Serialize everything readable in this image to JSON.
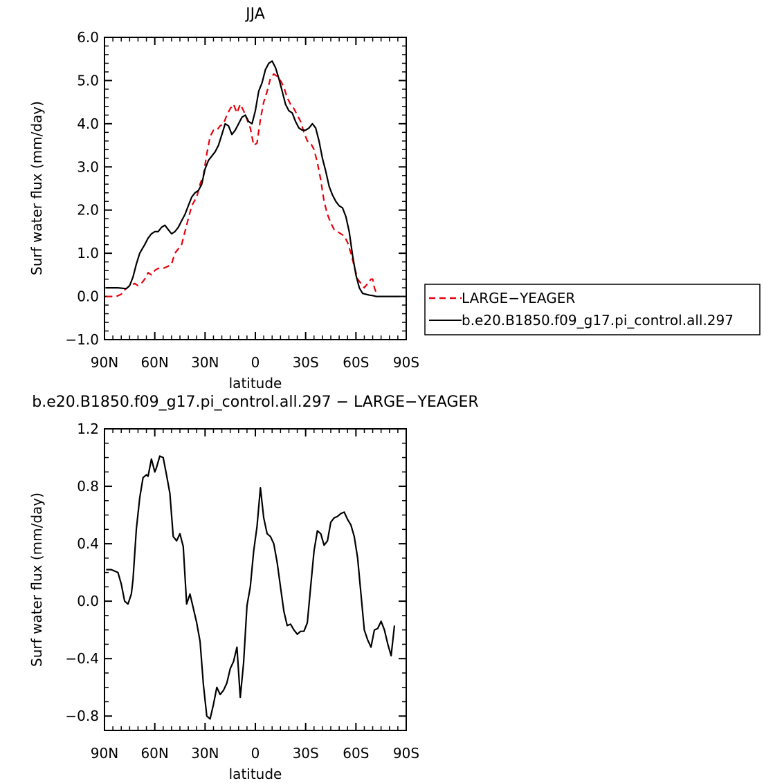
{
  "chart_data": [
    {
      "type": "line",
      "title": "JJA",
      "xlabel": "latitude",
      "ylabel": "Surf water flux (mm/day)",
      "xlim": [
        90,
        -90
      ],
      "ylim": [
        -1.0,
        6.0
      ],
      "xticks": [
        90,
        60,
        30,
        0,
        -30,
        -60,
        -90
      ],
      "xtick_labels": [
        "90N",
        "60N",
        "30N",
        "0",
        "30S",
        "60S",
        "90S"
      ],
      "yticks": [
        -1.0,
        0.0,
        1.0,
        2.0,
        3.0,
        4.0,
        5.0,
        6.0
      ],
      "ytick_labels": [
        "−1.0",
        "0.0",
        "1.0",
        "2.0",
        "3.0",
        "4.0",
        "5.0",
        "6.0"
      ],
      "legend_position": "right",
      "series": [
        {
          "name": "LARGE−YEAGER",
          "color": "#e8000b",
          "dash": "dashed",
          "points": [
            [
              89,
              0.0
            ],
            [
              83,
              0.0
            ],
            [
              80,
              0.05
            ],
            [
              78,
              0.15
            ],
            [
              75,
              0.25
            ],
            [
              72,
              0.3
            ],
            [
              70,
              0.25
            ],
            [
              68,
              0.3
            ],
            [
              66,
              0.4
            ],
            [
              64,
              0.55
            ],
            [
              62,
              0.5
            ],
            [
              60,
              0.6
            ],
            [
              58,
              0.65
            ],
            [
              55,
              0.65
            ],
            [
              52,
              0.7
            ],
            [
              50,
              0.75
            ],
            [
              48,
              1.0
            ],
            [
              46,
              1.1
            ],
            [
              44,
              1.2
            ],
            [
              42,
              1.5
            ],
            [
              40,
              1.8
            ],
            [
              38,
              2.1
            ],
            [
              35,
              2.3
            ],
            [
              33,
              2.6
            ],
            [
              31,
              2.8
            ],
            [
              29,
              3.3
            ],
            [
              27,
              3.7
            ],
            [
              25,
              3.85
            ],
            [
              23,
              3.85
            ],
            [
              21,
              3.95
            ],
            [
              19,
              4.0
            ],
            [
              17,
              4.2
            ],
            [
              15,
              4.35
            ],
            [
              13,
              4.45
            ],
            [
              11,
              4.25
            ],
            [
              9,
              4.45
            ],
            [
              7,
              4.3
            ],
            [
              5,
              4.1
            ],
            [
              3,
              3.9
            ],
            [
              1,
              3.5
            ],
            [
              -1,
              3.55
            ],
            [
              -3,
              4.1
            ],
            [
              -5,
              4.5
            ],
            [
              -7,
              4.75
            ],
            [
              -9,
              5.05
            ],
            [
              -11,
              5.15
            ],
            [
              -13,
              5.1
            ],
            [
              -15,
              5.0
            ],
            [
              -17,
              4.85
            ],
            [
              -19,
              4.6
            ],
            [
              -21,
              4.45
            ],
            [
              -23,
              4.35
            ],
            [
              -25,
              4.2
            ],
            [
              -27,
              4.05
            ],
            [
              -29,
              3.8
            ],
            [
              -31,
              3.6
            ],
            [
              -33,
              3.55
            ],
            [
              -35,
              3.4
            ],
            [
              -37,
              3.1
            ],
            [
              -39,
              2.7
            ],
            [
              -41,
              2.2
            ],
            [
              -43,
              1.9
            ],
            [
              -45,
              1.7
            ],
            [
              -47,
              1.55
            ],
            [
              -49,
              1.5
            ],
            [
              -51,
              1.45
            ],
            [
              -53,
              1.4
            ],
            [
              -55,
              1.25
            ],
            [
              -57,
              1.0
            ],
            [
              -59,
              0.7
            ],
            [
              -61,
              0.4
            ],
            [
              -63,
              0.3
            ],
            [
              -65,
              0.2
            ],
            [
              -67,
              0.3
            ],
            [
              -69,
              0.4
            ],
            [
              -70,
              0.4
            ],
            [
              -71,
              0.2
            ],
            [
              -72,
              0.1
            ]
          ]
        },
        {
          "name": "b.e20.B1850.f09_g17.pi_control.all.297",
          "color": "#000000",
          "dash": "solid",
          "points": [
            [
              89,
              0.2
            ],
            [
              82,
              0.2
            ],
            [
              77,
              0.18
            ],
            [
              75,
              0.25
            ],
            [
              73,
              0.45
            ],
            [
              71,
              0.75
            ],
            [
              69,
              1.0
            ],
            [
              66,
              1.2
            ],
            [
              64,
              1.35
            ],
            [
              62,
              1.45
            ],
            [
              60,
              1.5
            ],
            [
              58,
              1.5
            ],
            [
              56,
              1.6
            ],
            [
              54,
              1.65
            ],
            [
              52,
              1.55
            ],
            [
              50,
              1.45
            ],
            [
              48,
              1.5
            ],
            [
              46,
              1.6
            ],
            [
              44,
              1.75
            ],
            [
              42,
              1.9
            ],
            [
              40,
              2.1
            ],
            [
              38,
              2.3
            ],
            [
              36,
              2.4
            ],
            [
              34,
              2.45
            ],
            [
              32,
              2.6
            ],
            [
              30,
              2.95
            ],
            [
              28,
              3.15
            ],
            [
              26,
              3.25
            ],
            [
              24,
              3.35
            ],
            [
              22,
              3.5
            ],
            [
              20,
              3.75
            ],
            [
              18,
              4.0
            ],
            [
              16,
              3.95
            ],
            [
              14,
              3.75
            ],
            [
              12,
              3.85
            ],
            [
              10,
              4.0
            ],
            [
              8,
              4.15
            ],
            [
              6,
              4.2
            ],
            [
              4,
              4.05
            ],
            [
              2,
              4.0
            ],
            [
              0,
              4.3
            ],
            [
              -2,
              4.75
            ],
            [
              -4,
              4.95
            ],
            [
              -6,
              5.25
            ],
            [
              -8,
              5.4
            ],
            [
              -10,
              5.45
            ],
            [
              -12,
              5.3
            ],
            [
              -14,
              5.05
            ],
            [
              -16,
              4.75
            ],
            [
              -18,
              4.45
            ],
            [
              -20,
              4.3
            ],
            [
              -22,
              4.25
            ],
            [
              -24,
              4.05
            ],
            [
              -26,
              3.9
            ],
            [
              -28,
              3.85
            ],
            [
              -30,
              3.85
            ],
            [
              -32,
              3.9
            ],
            [
              -34,
              4.0
            ],
            [
              -36,
              3.9
            ],
            [
              -38,
              3.6
            ],
            [
              -40,
              3.2
            ],
            [
              -42,
              2.9
            ],
            [
              -44,
              2.55
            ],
            [
              -46,
              2.35
            ],
            [
              -48,
              2.2
            ],
            [
              -50,
              2.1
            ],
            [
              -52,
              2.05
            ],
            [
              -54,
              1.85
            ],
            [
              -56,
              1.5
            ],
            [
              -58,
              0.95
            ],
            [
              -60,
              0.5
            ],
            [
              -62,
              0.2
            ],
            [
              -64,
              0.07
            ],
            [
              -66,
              0.05
            ],
            [
              -68,
              0.03
            ],
            [
              -70,
              0.02
            ],
            [
              -72,
              0.0
            ],
            [
              -74,
              0.0
            ],
            [
              -80,
              0.0
            ],
            [
              -86,
              0.0
            ]
          ]
        }
      ]
    },
    {
      "type": "line",
      "title": "b.e20.B1850.f09_g17.pi_control.all.297 − LARGE−YEAGER",
      "xlabel": "latitude",
      "ylabel": "Surf water flux (mm/day)",
      "xlim": [
        90,
        -90
      ],
      "ylim": [
        -0.9,
        1.2
      ],
      "xticks": [
        90,
        60,
        30,
        0,
        -30,
        -60,
        -90
      ],
      "xtick_labels": [
        "90N",
        "60N",
        "30N",
        "0",
        "30S",
        "60S",
        "90S"
      ],
      "yticks": [
        -0.8,
        -0.4,
        0.0,
        0.4,
        0.8,
        1.2
      ],
      "ytick_labels": [
        "−0.8",
        "−0.4",
        "0.0",
        "0.4",
        "0.8",
        "1.2"
      ],
      "series": [
        {
          "color": "#000000",
          "dash": "solid",
          "points": [
            [
              89,
              0.22
            ],
            [
              86,
              0.22
            ],
            [
              82,
              0.2
            ],
            [
              80,
              0.12
            ],
            [
              78,
              0.0
            ],
            [
              76,
              -0.02
            ],
            [
              74,
              0.05
            ],
            [
              73,
              0.15
            ],
            [
              71,
              0.5
            ],
            [
              69,
              0.72
            ],
            [
              67,
              0.86
            ],
            [
              65,
              0.88
            ],
            [
              64,
              0.87
            ],
            [
              62,
              0.99
            ],
            [
              60,
              0.9
            ],
            [
              59,
              0.93
            ],
            [
              57,
              1.01
            ],
            [
              55,
              1.0
            ],
            [
              53,
              0.88
            ],
            [
              51,
              0.75
            ],
            [
              49,
              0.45
            ],
            [
              47,
              0.42
            ],
            [
              45,
              0.47
            ],
            [
              43,
              0.38
            ],
            [
              41,
              -0.02
            ],
            [
              39,
              0.05
            ],
            [
              37,
              -0.05
            ],
            [
              35,
              -0.15
            ],
            [
              33,
              -0.28
            ],
            [
              31,
              -0.58
            ],
            [
              29,
              -0.8
            ],
            [
              27,
              -0.82
            ],
            [
              25,
              -0.72
            ],
            [
              23,
              -0.6
            ],
            [
              21,
              -0.65
            ],
            [
              19,
              -0.62
            ],
            [
              17,
              -0.57
            ],
            [
              15,
              -0.47
            ],
            [
              13,
              -0.42
            ],
            [
              11,
              -0.32
            ],
            [
              9,
              -0.67
            ],
            [
              7,
              -0.43
            ],
            [
              5,
              -0.03
            ],
            [
              3,
              0.1
            ],
            [
              1,
              0.35
            ],
            [
              -1,
              0.52
            ],
            [
              -3,
              0.79
            ],
            [
              -5,
              0.58
            ],
            [
              -7,
              0.47
            ],
            [
              -9,
              0.45
            ],
            [
              -11,
              0.4
            ],
            [
              -13,
              0.27
            ],
            [
              -15,
              0.1
            ],
            [
              -17,
              -0.07
            ],
            [
              -19,
              -0.17
            ],
            [
              -21,
              -0.16
            ],
            [
              -23,
              -0.2
            ],
            [
              -25,
              -0.23
            ],
            [
              -27,
              -0.21
            ],
            [
              -29,
              -0.21
            ],
            [
              -31,
              -0.15
            ],
            [
              -33,
              0.1
            ],
            [
              -35,
              0.35
            ],
            [
              -37,
              0.49
            ],
            [
              -39,
              0.47
            ],
            [
              -41,
              0.39
            ],
            [
              -43,
              0.42
            ],
            [
              -45,
              0.55
            ],
            [
              -47,
              0.58
            ],
            [
              -49,
              0.59
            ],
            [
              -51,
              0.61
            ],
            [
              -53,
              0.62
            ],
            [
              -55,
              0.57
            ],
            [
              -57,
              0.53
            ],
            [
              -59,
              0.45
            ],
            [
              -61,
              0.3
            ],
            [
              -63,
              0.05
            ],
            [
              -65,
              -0.2
            ],
            [
              -67,
              -0.27
            ],
            [
              -69,
              -0.32
            ],
            [
              -71,
              -0.2
            ],
            [
              -73,
              -0.19
            ],
            [
              -75,
              -0.14
            ],
            [
              -77,
              -0.2
            ],
            [
              -79,
              -0.3
            ],
            [
              -81,
              -0.38
            ],
            [
              -83,
              -0.17
            ]
          ]
        }
      ]
    }
  ]
}
